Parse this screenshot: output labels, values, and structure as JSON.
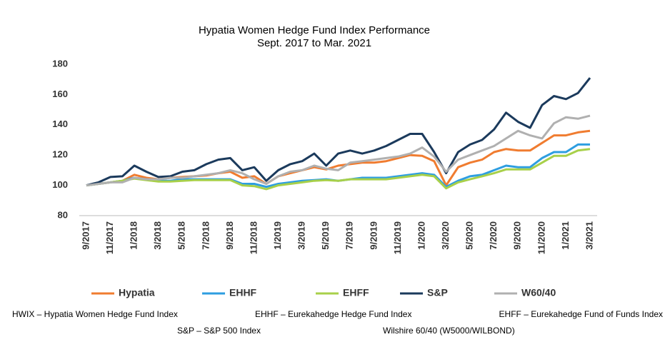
{
  "chart_data": {
    "type": "line",
    "title": "Hypatia Women Hedge Fund Index Performance",
    "subtitle": "Sept. 2017 to Mar. 2021",
    "categories": [
      "9/2017",
      null,
      "11/2017",
      null,
      "1/2018",
      null,
      "3/2018",
      null,
      "5/2018",
      null,
      "7/2018",
      null,
      "9/2018",
      null,
      "11/2018",
      null,
      "1/2019",
      null,
      "3/2019",
      null,
      "5/2019",
      null,
      "7/2019",
      null,
      "9/2019",
      null,
      "11/2019",
      null,
      "1/2020",
      null,
      "3/2020",
      null,
      "5/2020",
      null,
      "7/2020",
      null,
      "9/2020",
      null,
      "11/2020",
      null,
      "1/2021",
      null,
      "3/2021"
    ],
    "series": [
      {
        "name": "Hypatia",
        "color": "#f07c30",
        "values": [
          100,
          101,
          102,
          103,
          107,
          105,
          104,
          105,
          105.5,
          106,
          106.5,
          108,
          109,
          105,
          106,
          101,
          106,
          108,
          110,
          112,
          110.5,
          113,
          114,
          115,
          115,
          116,
          118,
          120,
          119.5,
          116,
          100,
          112,
          115,
          117,
          122,
          124,
          123,
          123,
          128,
          133,
          133,
          135,
          136
        ]
      },
      {
        "name": "EHHF",
        "color": "#2e9ee0",
        "values": [
          100,
          101,
          102,
          103,
          105,
          104,
          103,
          103,
          104,
          104,
          104,
          104,
          104,
          101,
          101,
          99,
          101,
          102,
          103,
          103.5,
          104,
          103,
          104,
          105,
          105,
          105,
          106,
          107,
          108,
          107,
          99,
          103,
          106,
          107,
          110,
          113,
          112,
          112,
          118,
          122,
          122,
          127,
          127
        ]
      },
      {
        "name": "EHFF",
        "color": "#a8d04a",
        "values": [
          100,
          101,
          102,
          103,
          104.5,
          103.5,
          102.5,
          102.5,
          103,
          103.5,
          103.5,
          103.5,
          103.5,
          100,
          99.5,
          97.5,
          100,
          101,
          102,
          103,
          103.5,
          103,
          104,
          104,
          104,
          104,
          105,
          106,
          107,
          106,
          98,
          102,
          104,
          106,
          108,
          110.5,
          110.5,
          110.5,
          115,
          119.5,
          119.5,
          123,
          124
        ]
      },
      {
        "name": "S&P",
        "color": "#1b3a5c",
        "values": [
          100,
          102,
          105.5,
          106,
          113,
          109,
          105.5,
          106,
          109,
          110,
          114,
          117,
          118,
          110,
          112,
          103,
          110,
          114,
          116,
          121,
          113,
          121,
          123,
          121,
          123,
          126,
          130,
          134,
          134,
          122,
          108,
          122,
          127,
          130,
          137,
          148,
          142,
          138,
          153,
          159,
          157,
          161,
          171
        ]
      },
      {
        "name": "W60/40",
        "color": "#b0b0b0",
        "values": [
          100,
          101,
          102,
          102,
          105,
          104,
          104,
          105,
          105,
          106,
          107,
          108,
          110,
          108,
          104,
          101,
          106,
          109,
          110,
          113,
          111,
          110,
          115,
          116,
          117,
          118,
          119,
          121,
          125,
          119,
          109,
          117,
          120,
          123,
          126,
          131,
          136,
          133,
          131,
          141,
          145,
          144,
          146
        ]
      }
    ],
    "ylim": [
      80,
      180
    ],
    "yticks": [
      80,
      100,
      120,
      140,
      160,
      180
    ],
    "grid": false,
    "legend": "bottom",
    "notes": [
      "HWIX – Hypatia Women Hedge Fund Index",
      "EHHF – Eurekahedge Hedge Fund Index",
      "EHFF – Eurekahedge Fund of Funds Index",
      "S&P – S&P 500 Index",
      "Wilshire 60/40 (W5000/WILBOND)"
    ]
  }
}
